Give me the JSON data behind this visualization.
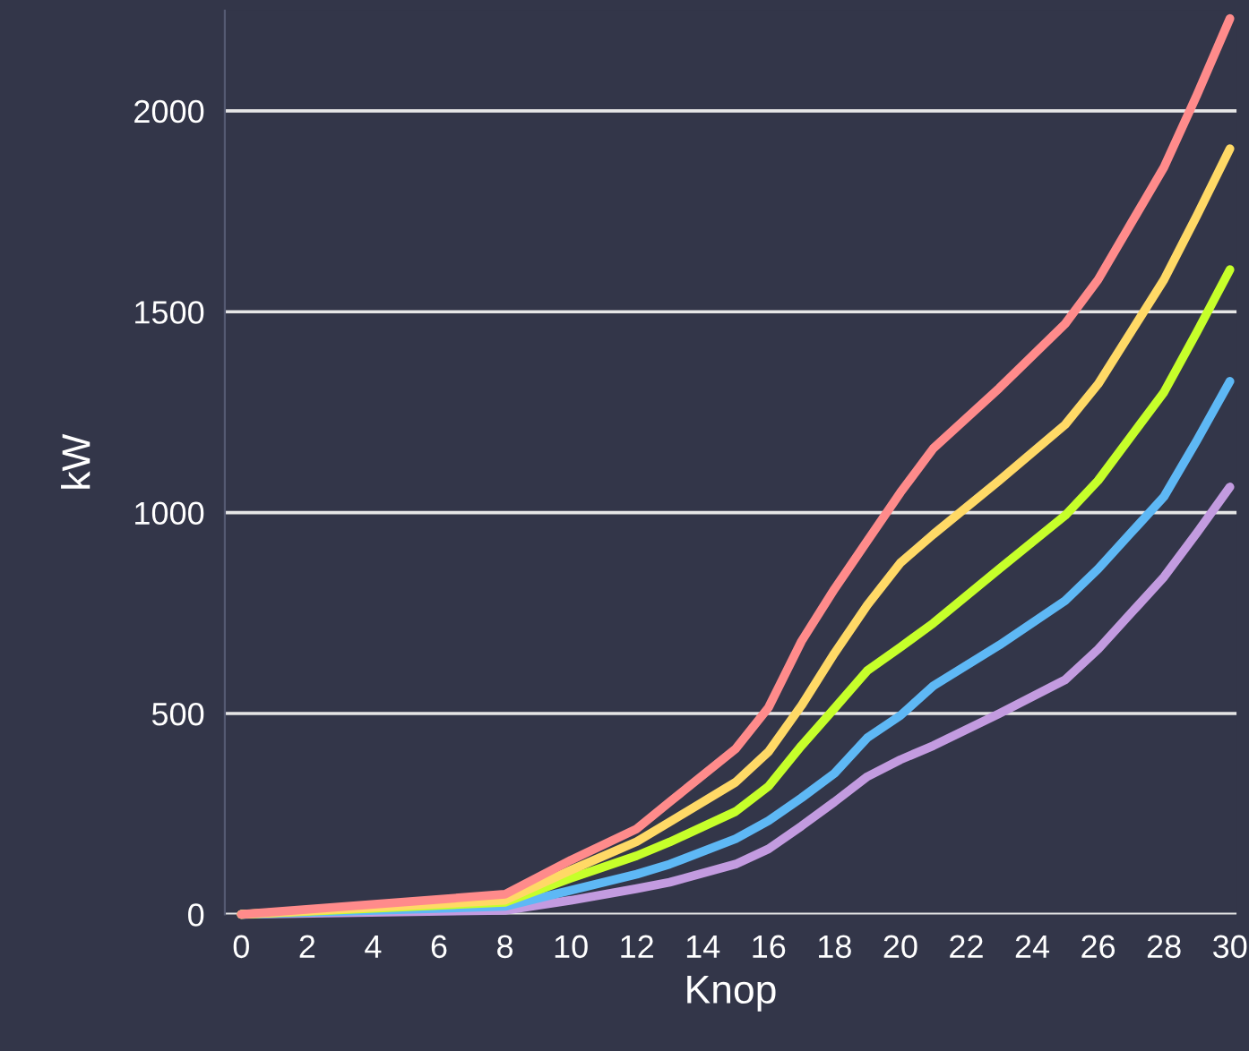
{
  "chart_data": {
    "type": "line",
    "xlabel": "Knop",
    "ylabel": "kW",
    "x": [
      0,
      8,
      10,
      12,
      13,
      15,
      16,
      17,
      18,
      19,
      20,
      21,
      23,
      25,
      26,
      27,
      28,
      29,
      30
    ],
    "series": [
      {
        "color": "#ff8b8b",
        "values": [
          0,
          50,
          135,
          213,
          280,
          412,
          515,
          680,
          810,
          930,
          1050,
          1160,
          1310,
          1470,
          1580,
          1720,
          1860,
          2040,
          2230
        ]
      },
      {
        "color": "#ffd966",
        "values": [
          0,
          35,
          110,
          181,
          230,
          329,
          405,
          520,
          650,
          770,
          875,
          946,
          1080,
          1219,
          1320,
          1450,
          1580,
          1740,
          1906
        ]
      },
      {
        "color": "#c6ff2a",
        "values": [
          0,
          30,
          90,
          146,
          180,
          256,
          319,
          420,
          513,
          607,
          665,
          725,
          860,
          993,
          1080,
          1190,
          1300,
          1450,
          1605
        ]
      },
      {
        "color": "#5eb8f5",
        "values": [
          0,
          20,
          60,
          100,
          125,
          188,
          233,
          290,
          351,
          440,
          495,
          569,
          670,
          781,
          860,
          950,
          1040,
          1180,
          1327
        ]
      },
      {
        "color": "#c39be0",
        "values": [
          0,
          10,
          35,
          64,
          80,
          125,
          163,
          220,
          280,
          343,
          385,
          420,
          500,
          584,
          660,
          750,
          840,
          950,
          1064
        ]
      }
    ],
    "xlim": [
      -0.5,
      30.2
    ],
    "ylim": [
      0,
      2250
    ],
    "xticks": [
      0,
      2,
      4,
      6,
      8,
      10,
      12,
      14,
      16,
      18,
      20,
      22,
      24,
      26,
      28,
      30
    ],
    "yticks": [
      0,
      500,
      1000,
      1500,
      2000
    ],
    "grid": "y",
    "marker": "none",
    "line_style": "solid"
  }
}
